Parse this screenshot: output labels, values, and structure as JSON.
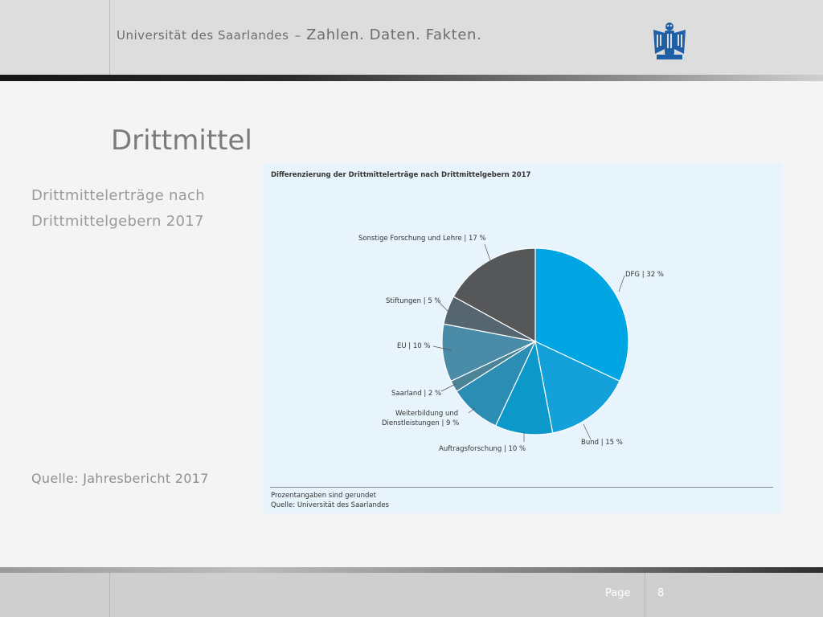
{
  "header": {
    "title_small": "Universität des Saarlandes",
    "title_dash": "–",
    "title_big": "Zahlen. Daten. Fakten."
  },
  "slide": {
    "title": "Drittmittel",
    "subtitle_line1": "Drittmittelerträge nach",
    "subtitle_line2": "Drittmittelgebern 2017",
    "source": "Quelle: Jahresbericht 2017"
  },
  "chart_data": {
    "type": "pie",
    "title": "Differenzierung der Drittmittelerträge nach Drittmittelgebern 2017",
    "unit": "%",
    "slices": [
      {
        "label": "DFG | 32 %",
        "value": 32,
        "color": "#00a6e4"
      },
      {
        "label": "Bund | 15 %",
        "value": 15,
        "color": "#14a0d9"
      },
      {
        "label": "Auftragsforschung | 10 %",
        "value": 10,
        "color": "#0c98c8"
      },
      {
        "label": "Weiterbildung und Dienstleistungen | 9 %",
        "label_line1": "Weiterbildung und",
        "label_line2": "Dienstleistungen | 9 %",
        "value": 9,
        "color": "#2b8cb4"
      },
      {
        "label": "Saarland | 2 %",
        "value": 2,
        "color": "#4d8397"
      },
      {
        "label": "EU | 10 %",
        "value": 10,
        "color": "#4a8ba8"
      },
      {
        "label": "Stiftungen | 5 %",
        "value": 5,
        "color": "#566670"
      },
      {
        "label": "Sonstige Forschung und Lehre | 17 %",
        "value": 17,
        "color": "#565759"
      }
    ],
    "note": "Prozentangaben sind gerundet",
    "source": "Quelle: Universität des Saarlandes"
  },
  "footer": {
    "page_label": "Page",
    "page_number": "8"
  },
  "colors": {
    "header_bg": "#dddddd",
    "footer_bg": "#cfcfcf",
    "chart_bg": "#e7f4fb"
  }
}
